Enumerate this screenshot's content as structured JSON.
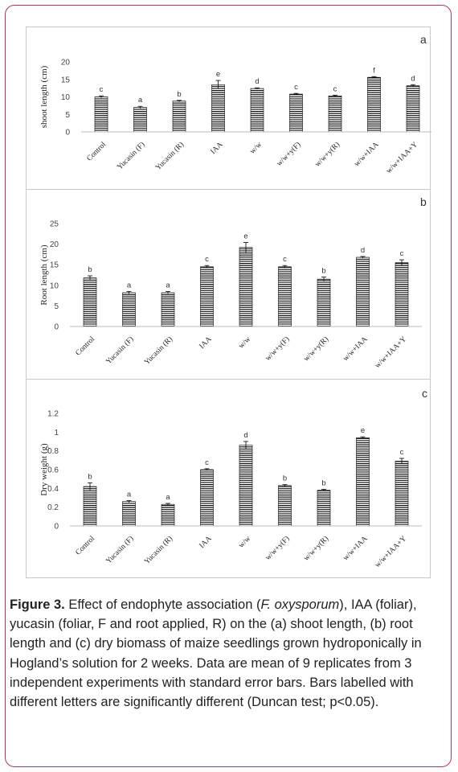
{
  "chart_data": [
    {
      "type": "bar",
      "panel_label": "a",
      "ylabel": "shoot length (cm)",
      "ylim": [
        0,
        20
      ],
      "yticks": [
        "0",
        "5",
        "10",
        "15",
        "20"
      ],
      "categories": [
        "Control",
        "Yucasin (F)",
        "Yucasin (R)",
        "IAA",
        "w/w",
        "w/w+y(F)",
        "w/w+y(R)",
        "w/w+IAA",
        "w/w+IAA+Y"
      ],
      "values": [
        10.0,
        7.0,
        8.8,
        13.5,
        12.4,
        10.8,
        10.3,
        15.6,
        13.2
      ],
      "errors": [
        0.3,
        0.3,
        0.2,
        1.2,
        0.2,
        0.2,
        0.2,
        0.2,
        0.3
      ],
      "letters": [
        "c",
        "a",
        "b",
        "e",
        "d",
        "c",
        "c",
        "f",
        "d"
      ],
      "grid": false
    },
    {
      "type": "bar",
      "panel_label": "b",
      "ylabel": "Root length (cm)",
      "ylim": [
        0,
        25
      ],
      "yticks": [
        "0",
        "5",
        "10",
        "15",
        "20",
        "25"
      ],
      "categories": [
        "Control",
        "Yucasin (F)",
        "Yucasin (R)",
        "IAA",
        "w/w",
        "w/w+y(F)",
        "w/w+y(R)",
        "w/w+IAA",
        "w/w+IAA+Y"
      ],
      "values": [
        11.8,
        8.2,
        8.2,
        14.5,
        19.2,
        14.5,
        11.5,
        16.8,
        15.5
      ],
      "errors": [
        0.5,
        0.3,
        0.3,
        0.3,
        1.2,
        0.3,
        0.5,
        0.2,
        0.7
      ],
      "letters": [
        "b",
        "a",
        "a",
        "c",
        "e",
        "c",
        "b",
        "d",
        "c"
      ],
      "grid": false
    },
    {
      "type": "bar",
      "panel_label": "c",
      "ylabel": "Dry weight (g)",
      "ylim": [
        0,
        1.2
      ],
      "yticks": [
        "0",
        "0.2",
        "0.4",
        "0.6",
        "0.8",
        "1",
        "1.2"
      ],
      "categories": [
        "Control",
        "Yucasin (F)",
        "Yucasin (R)",
        "IAA",
        "w/w",
        "w/w+y(F)",
        "w/w+y(R)",
        "w/w+IAA",
        "w/w+IAA+Y"
      ],
      "values": [
        0.42,
        0.26,
        0.23,
        0.6,
        0.86,
        0.43,
        0.38,
        0.94,
        0.69
      ],
      "errors": [
        0.04,
        0.01,
        0.01,
        0.01,
        0.04,
        0.01,
        0.01,
        0.01,
        0.03
      ],
      "letters": [
        "b",
        "a",
        "a",
        "c",
        "d",
        "b",
        "b",
        "e",
        "c"
      ],
      "grid": false
    }
  ],
  "caption": {
    "label": "Figure 3.",
    "part1": " Effect of endophyte association (",
    "species": "F. oxysporum",
    "part2": "), IAA (foliar), yucasin (foliar, F and root applied, R) on the (a) shoot length, (b) root length and (c) dry biomass of maize seedlings grown hydroponically in Hogland’s solution for 2 weeks. Data are mean of 9 replicates from 3 independent experiments with standard error bars. Bars labelled with different letters are significantly different (Duncan test; p<0.05)."
  },
  "colors": {
    "frame": "#b4336a",
    "bar_stripe": "#000000",
    "text": "#222222"
  }
}
